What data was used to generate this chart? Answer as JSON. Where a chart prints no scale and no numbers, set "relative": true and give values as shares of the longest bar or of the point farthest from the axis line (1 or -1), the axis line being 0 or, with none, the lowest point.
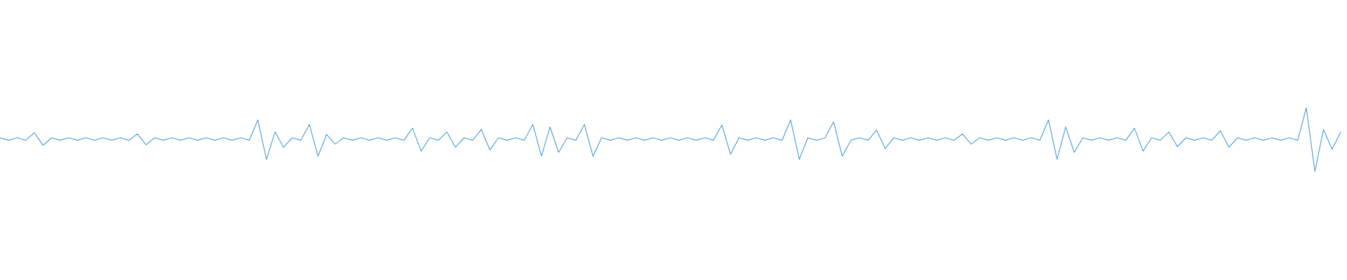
{
  "chart_data": {
    "type": "line",
    "relative": true,
    "categories": [
      null,
      null,
      null,
      null,
      null,
      null,
      null,
      null,
      null,
      null,
      null,
      null,
      null,
      null,
      null,
      null,
      null,
      null,
      null,
      null,
      null,
      null,
      null,
      null,
      null,
      null,
      null,
      null,
      null,
      null,
      null,
      null,
      null,
      null,
      null,
      null,
      null,
      null,
      null,
      null,
      null,
      null,
      null,
      null,
      null,
      null,
      null,
      null,
      null,
      null,
      null,
      null,
      null,
      null,
      null,
      null,
      null,
      null,
      null,
      null,
      null,
      null,
      null,
      null,
      null,
      null,
      null,
      null,
      null,
      null,
      null,
      null,
      null,
      null,
      null,
      null,
      null,
      null,
      null,
      null,
      null,
      null,
      null,
      null,
      null,
      null,
      null,
      null,
      null,
      null,
      null,
      null,
      null,
      null,
      null,
      null,
      null,
      null,
      null,
      null,
      null,
      null,
      null,
      null,
      null,
      null,
      null,
      null,
      null,
      null,
      null,
      null,
      null,
      null,
      null,
      null,
      null,
      null,
      null,
      null,
      null,
      null,
      null,
      null,
      null,
      null,
      null,
      null,
      null,
      null,
      null,
      null,
      null,
      null,
      null,
      null,
      null,
      null,
      null,
      null,
      null,
      null,
      null,
      null,
      null,
      null,
      null,
      null,
      null,
      null,
      null,
      null,
      null,
      null,
      null,
      null,
      null
    ],
    "series": [
      {
        "color": "#5aaae0",
        "values": [
          0.53,
          0.49,
          0.53,
          0.49,
          0.61,
          0.41,
          0.53,
          0.49,
          0.53,
          0.49,
          0.53,
          0.49,
          0.53,
          0.49,
          0.53,
          0.49,
          0.59,
          0.42,
          0.53,
          0.49,
          0.53,
          0.49,
          0.53,
          0.49,
          0.53,
          0.49,
          0.53,
          0.49,
          0.53,
          0.49,
          0.81,
          0.19,
          0.62,
          0.38,
          0.53,
          0.49,
          0.74,
          0.24,
          0.58,
          0.43,
          0.53,
          0.49,
          0.53,
          0.49,
          0.53,
          0.49,
          0.53,
          0.49,
          0.68,
          0.32,
          0.53,
          0.49,
          0.62,
          0.38,
          0.53,
          0.49,
          0.66,
          0.34,
          0.53,
          0.49,
          0.53,
          0.49,
          0.74,
          0.24,
          0.7,
          0.3,
          0.53,
          0.49,
          0.74,
          0.24,
          0.53,
          0.49,
          0.53,
          0.49,
          0.53,
          0.49,
          0.53,
          0.49,
          0.53,
          0.49,
          0.53,
          0.49,
          0.53,
          0.49,
          0.73,
          0.27,
          0.53,
          0.49,
          0.53,
          0.49,
          0.53,
          0.49,
          0.81,
          0.19,
          0.53,
          0.49,
          0.53,
          0.78,
          0.24,
          0.49,
          0.53,
          0.49,
          0.65,
          0.36,
          0.53,
          0.49,
          0.53,
          0.49,
          0.53,
          0.49,
          0.53,
          0.49,
          0.59,
          0.43,
          0.53,
          0.49,
          0.53,
          0.49,
          0.53,
          0.49,
          0.53,
          0.49,
          0.81,
          0.19,
          0.7,
          0.3,
          0.53,
          0.49,
          0.53,
          0.49,
          0.53,
          0.49,
          0.68,
          0.32,
          0.53,
          0.49,
          0.62,
          0.39,
          0.53,
          0.49,
          0.53,
          0.49,
          0.64,
          0.38,
          0.53,
          0.49,
          0.53,
          0.49,
          0.53,
          0.49,
          0.53,
          0.49,
          1,
          0,
          0.66,
          0.35,
          0.62
        ]
      }
    ]
  }
}
